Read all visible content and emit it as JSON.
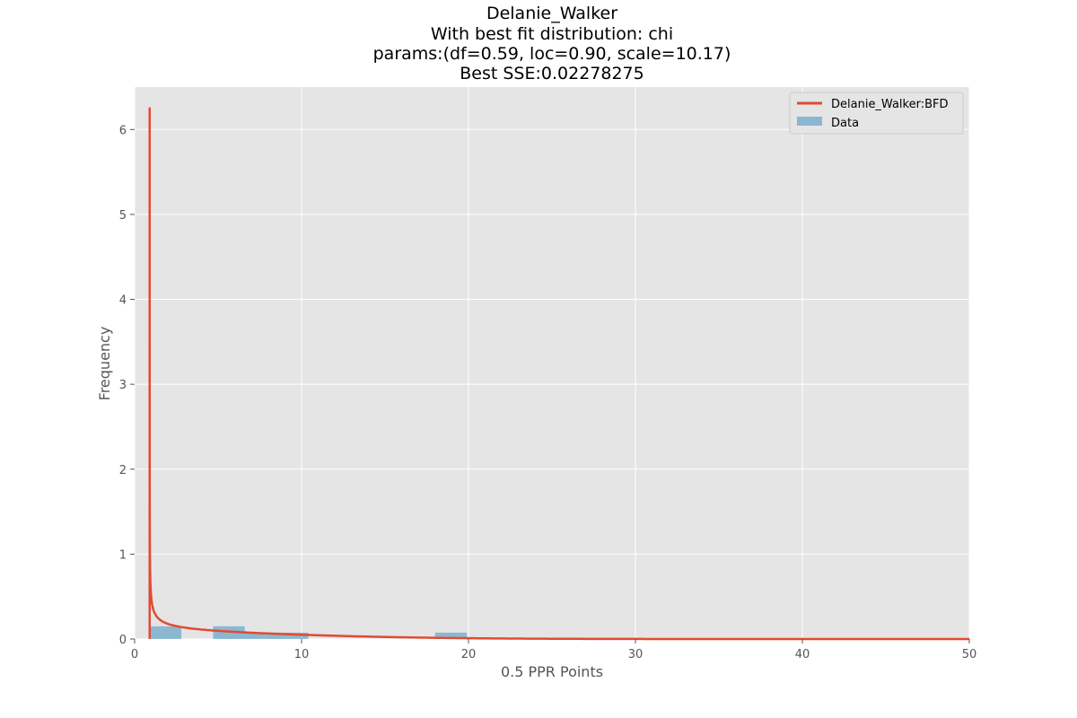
{
  "chart_data": {
    "type": "histogram",
    "title_lines": [
      "Delanie_Walker",
      "With best fit distribution: chi",
      "params:(df=0.59, loc=0.90, scale=10.17)",
      "Best SSE:0.02278275"
    ],
    "xlabel": "0.5 PPR Points",
    "ylabel": "Frequency",
    "xlim": [
      0,
      50
    ],
    "ylim": [
      0,
      6.5
    ],
    "xticks": [
      0,
      10,
      20,
      30,
      40,
      50
    ],
    "yticks": [
      0,
      1,
      2,
      3,
      4,
      5,
      6
    ],
    "grid": true,
    "legend_position": "top-right",
    "legend": [
      "Delanie_Walker:BFD",
      "Data"
    ],
    "histogram_bins": [
      {
        "x0": 0.9,
        "x1": 2.8,
        "y": 0.15
      },
      {
        "x0": 2.8,
        "x1": 4.7,
        "y": 0.0
      },
      {
        "x0": 4.7,
        "x1": 6.6,
        "y": 0.15
      },
      {
        "x0": 6.6,
        "x1": 8.5,
        "y": 0.075
      },
      {
        "x0": 8.5,
        "x1": 10.4,
        "y": 0.075
      },
      {
        "x0": 10.4,
        "x1": 12.3,
        "y": 0.0
      },
      {
        "x0": 12.3,
        "x1": 14.2,
        "y": 0.0
      },
      {
        "x0": 14.2,
        "x1": 16.1,
        "y": 0.0
      },
      {
        "x0": 16.1,
        "x1": 18.0,
        "y": 0.0
      },
      {
        "x0": 18.0,
        "x1": 19.9,
        "y": 0.075
      }
    ],
    "fit": {
      "distribution": "chi",
      "df": 0.59,
      "loc": 0.9,
      "scale": 10.17,
      "peak_y": 6.25,
      "peak_x": 0.9
    },
    "colors": {
      "plot_background": "#E5E5E5",
      "grid": "#FFFFFF",
      "fit_line": "#E24A33",
      "hist_bar": "#348ABD"
    }
  }
}
